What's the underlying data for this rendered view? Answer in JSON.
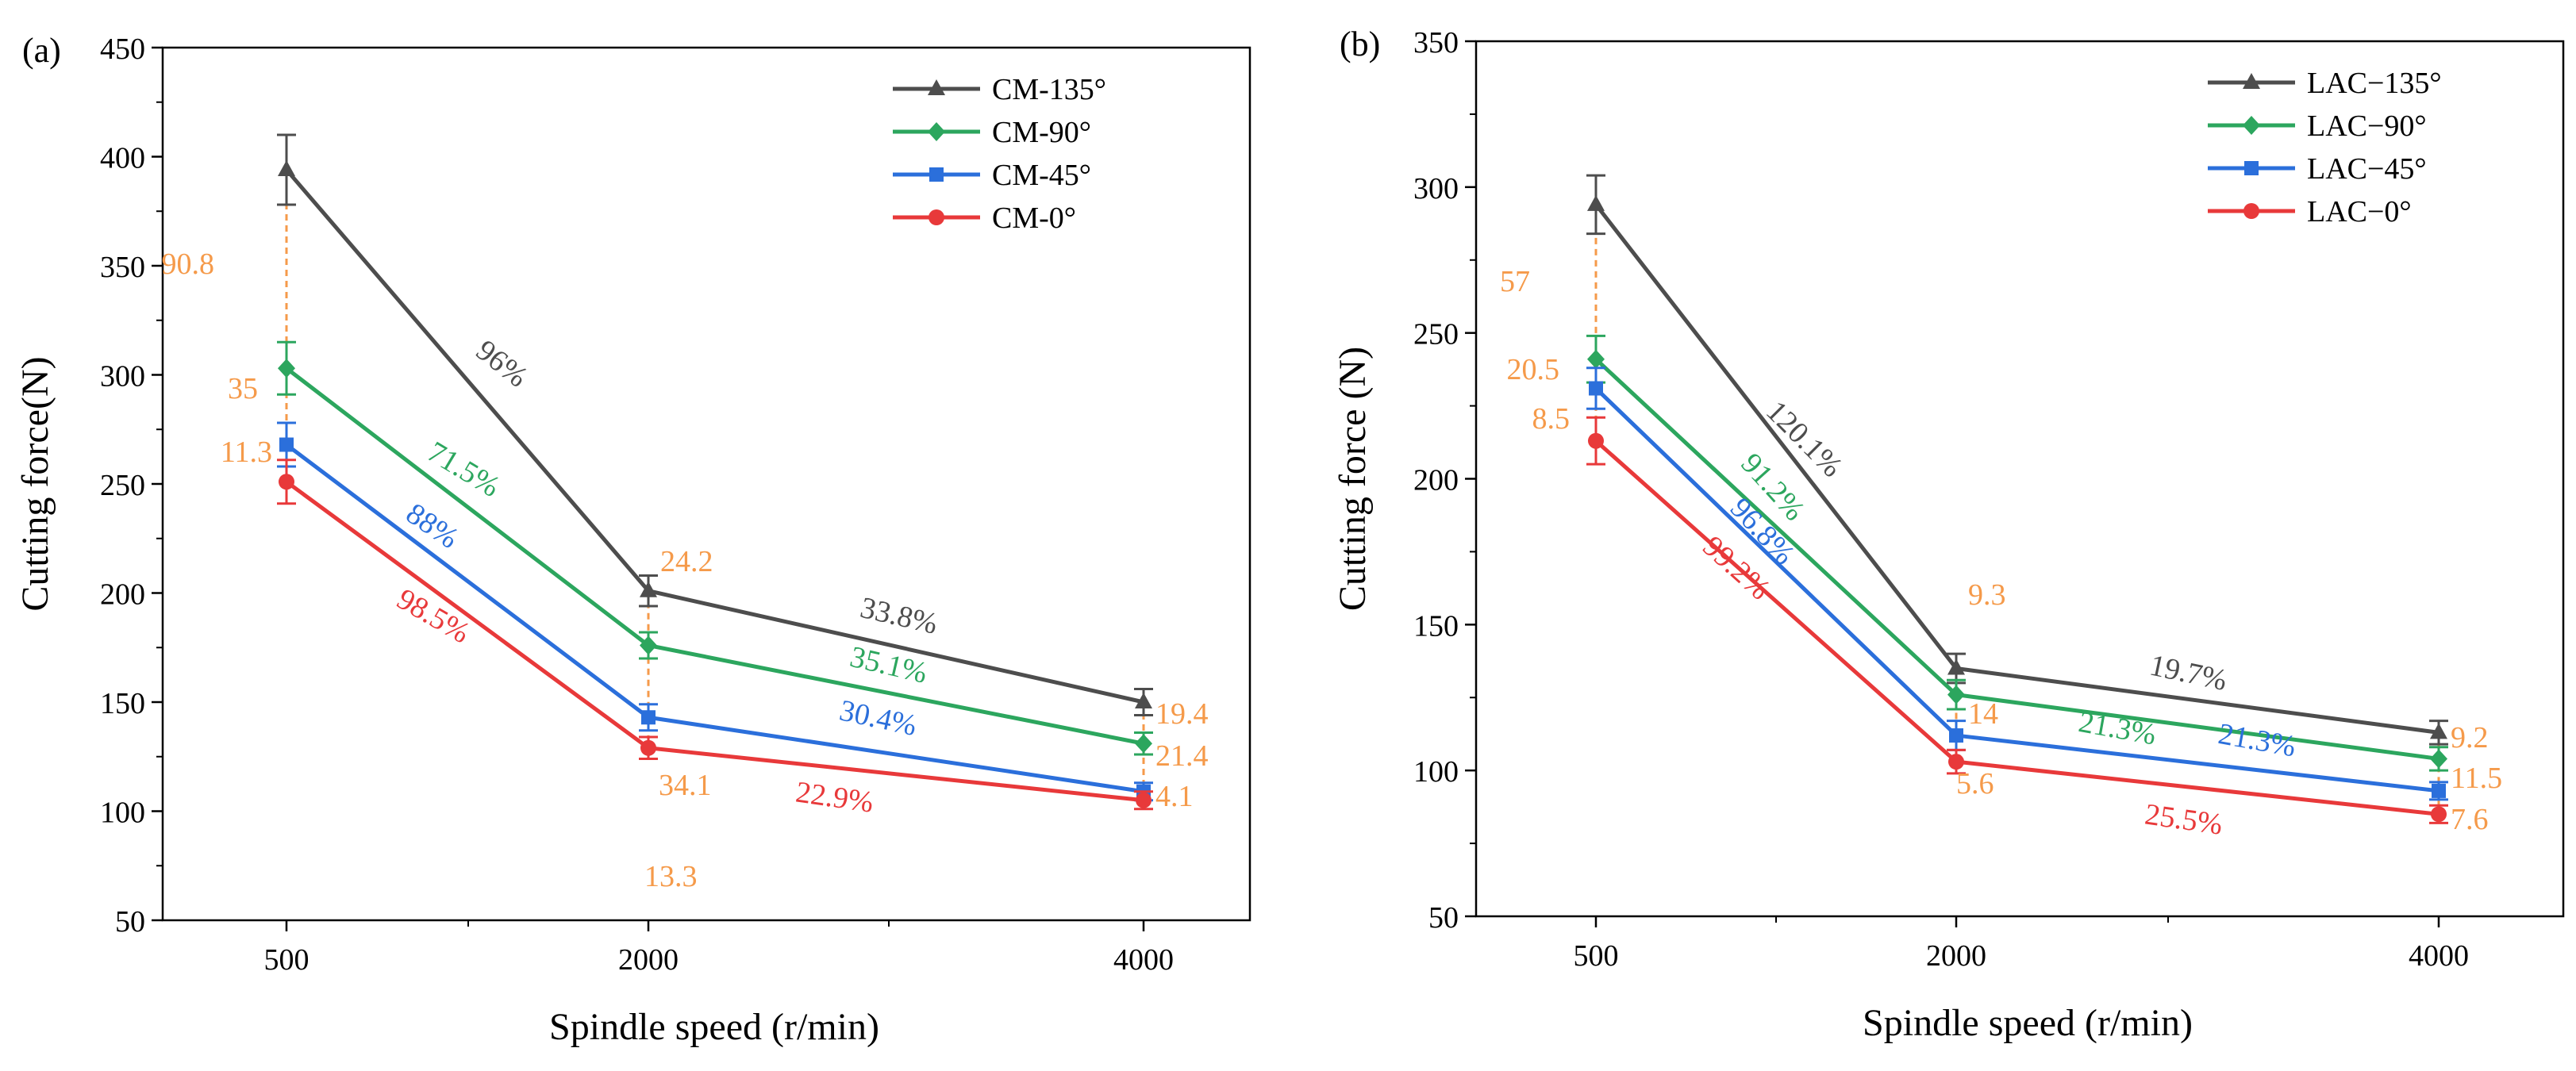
{
  "chart_data": [
    {
      "type": "line",
      "panel_label": "(a)",
      "title": "",
      "xlabel": "Spindle speed (r/min)",
      "ylabel": "Cutting force(N)",
      "categories": [
        "500",
        "2000",
        "4000"
      ],
      "ylim": [
        50,
        450
      ],
      "yticks": [
        "50",
        "100",
        "150",
        "200",
        "250",
        "300",
        "350",
        "400",
        "450"
      ],
      "legend_position": "top-right",
      "series": [
        {
          "name": "CM-135°",
          "color": "#4d4d4d",
          "marker": "triangle",
          "values": [
            394,
            201,
            150
          ],
          "errors": [
            16,
            7,
            6
          ]
        },
        {
          "name": "CM-90°",
          "color": "#2ca65e",
          "marker": "diamond",
          "values": [
            303,
            176,
            131
          ],
          "errors": [
            12,
            6,
            5
          ]
        },
        {
          "name": "CM-45°",
          "color": "#2b6fdb",
          "marker": "square",
          "values": [
            268,
            143,
            109
          ],
          "errors": [
            10,
            6,
            4
          ]
        },
        {
          "name": "CM-0°",
          "color": "#e8393a",
          "marker": "circle",
          "values": [
            251,
            129,
            105
          ],
          "errors": [
            10,
            5,
            4
          ]
        }
      ],
      "diff_labels": [
        {
          "text": "90.8",
          "color": "#f59a4a"
        },
        {
          "text": "35",
          "color": "#f59a4a"
        },
        {
          "text": "11.3",
          "color": "#f59a4a"
        },
        {
          "text": "24.2",
          "color": "#f59a4a"
        },
        {
          "text": "34.1",
          "color": "#f59a4a"
        },
        {
          "text": "13.3",
          "color": "#f59a4a"
        },
        {
          "text": "19.4",
          "color": "#f59a4a"
        },
        {
          "text": "21.4",
          "color": "#f59a4a"
        },
        {
          "text": "4.1",
          "color": "#f59a4a"
        }
      ],
      "slope_labels": [
        {
          "text": "96%",
          "color": "#4d4d4d"
        },
        {
          "text": "71.5%",
          "color": "#2ca65e"
        },
        {
          "text": "88%",
          "color": "#2b6fdb"
        },
        {
          "text": "98.5%",
          "color": "#e8393a"
        },
        {
          "text": "33.8%",
          "color": "#4d4d4d"
        },
        {
          "text": "35.1%",
          "color": "#2ca65e"
        },
        {
          "text": "30.4%",
          "color": "#2b6fdb"
        },
        {
          "text": "22.9%",
          "color": "#e8393a"
        }
      ]
    },
    {
      "type": "line",
      "panel_label": "(b)",
      "title": "",
      "xlabel": "Spindle speed (r/min)",
      "ylabel": "Cutting force (N)",
      "categories": [
        "500",
        "2000",
        "4000"
      ],
      "ylim": [
        50,
        350
      ],
      "yticks": [
        "50",
        "100",
        "150",
        "200",
        "250",
        "300",
        "350"
      ],
      "legend_position": "top-right",
      "series": [
        {
          "name": "LAC−135°",
          "color": "#4d4d4d",
          "marker": "triangle",
          "values": [
            294,
            135,
            113
          ],
          "errors": [
            10,
            5,
            4
          ]
        },
        {
          "name": "LAC−90°",
          "color": "#2ca65e",
          "marker": "diamond",
          "values": [
            241,
            126,
            104
          ],
          "errors": [
            8,
            5,
            4
          ]
        },
        {
          "name": "LAC−45°",
          "color": "#2b6fdb",
          "marker": "square",
          "values": [
            231,
            112,
            93
          ],
          "errors": [
            7,
            5,
            3
          ]
        },
        {
          "name": "LAC−0°",
          "color": "#e8393a",
          "marker": "circle",
          "values": [
            213,
            103,
            85
          ],
          "errors": [
            8,
            4,
            3
          ]
        }
      ],
      "diff_labels": [
        {
          "text": "57",
          "color": "#f59a4a"
        },
        {
          "text": "20.5",
          "color": "#f59a4a"
        },
        {
          "text": "8.5",
          "color": "#f59a4a"
        },
        {
          "text": "9.3",
          "color": "#f59a4a"
        },
        {
          "text": "14",
          "color": "#f59a4a"
        },
        {
          "text": "5.6",
          "color": "#f59a4a"
        },
        {
          "text": "9.2",
          "color": "#f59a4a"
        },
        {
          "text": "11.5",
          "color": "#f59a4a"
        },
        {
          "text": "7.6",
          "color": "#f59a4a"
        }
      ],
      "slope_labels": [
        {
          "text": "120.1%",
          "color": "#4d4d4d"
        },
        {
          "text": "91.2%",
          "color": "#2ca65e"
        },
        {
          "text": "96.8%",
          "color": "#2b6fdb"
        },
        {
          "text": "99.2%",
          "color": "#e8393a"
        },
        {
          "text": "19.7%",
          "color": "#4d4d4d"
        },
        {
          "text": "21.3%",
          "color": "#2ca65e"
        },
        {
          "text": "21.3%",
          "color": "#2b6fdb"
        },
        {
          "text": "25.5%",
          "color": "#e8393a"
        }
      ]
    }
  ]
}
